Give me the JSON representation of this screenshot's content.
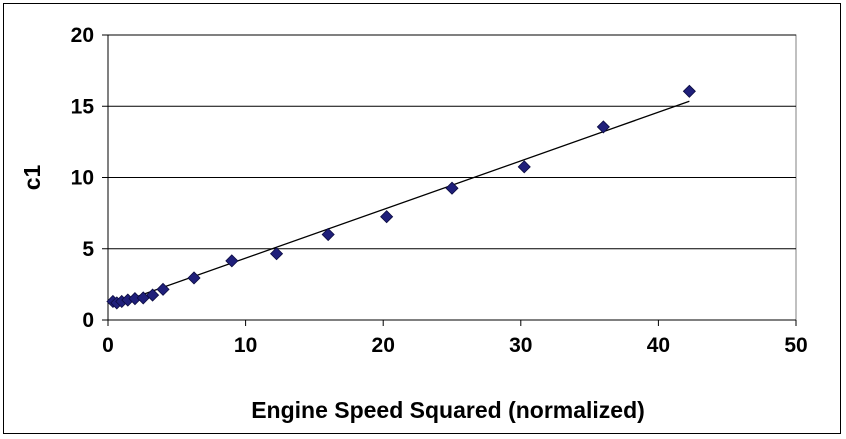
{
  "chart_data": {
    "type": "scatter",
    "title": "",
    "xlabel": "Engine Speed Squared (normalized)",
    "ylabel": "c1",
    "xlim": [
      0,
      50
    ],
    "ylim": [
      0,
      20
    ],
    "xticks": [
      0,
      10,
      20,
      30,
      40,
      50
    ],
    "yticks": [
      0,
      5,
      10,
      15,
      20
    ],
    "x_tick_labels": [
      "0",
      "10",
      "20",
      "30",
      "40",
      "50"
    ],
    "y_tick_labels": [
      "0",
      "5",
      "10",
      "15",
      "20"
    ],
    "grid": "horizontal",
    "legend": "none",
    "marker": "diamond",
    "marker_color": "#1f1f7a",
    "line_color": "#000000",
    "plot_background": "#ffffff",
    "series": [
      {
        "x": [
          0.36,
          0.64,
          1.0,
          1.44,
          1.96,
          2.56,
          3.24,
          4.0,
          6.25,
          9.0,
          12.25,
          16.0,
          20.25,
          25.0,
          30.25,
          36.0,
          42.25
        ],
        "y": [
          1.3,
          1.2,
          1.3,
          1.4,
          1.5,
          1.55,
          1.75,
          2.15,
          2.95,
          4.15,
          4.65,
          6.0,
          7.25,
          9.25,
          10.75,
          13.55,
          16.05
        ]
      }
    ],
    "trendline": {
      "type": "linear",
      "x": [
        0.36,
        42.25
      ],
      "y": [
        1.05,
        15.35
      ]
    }
  }
}
